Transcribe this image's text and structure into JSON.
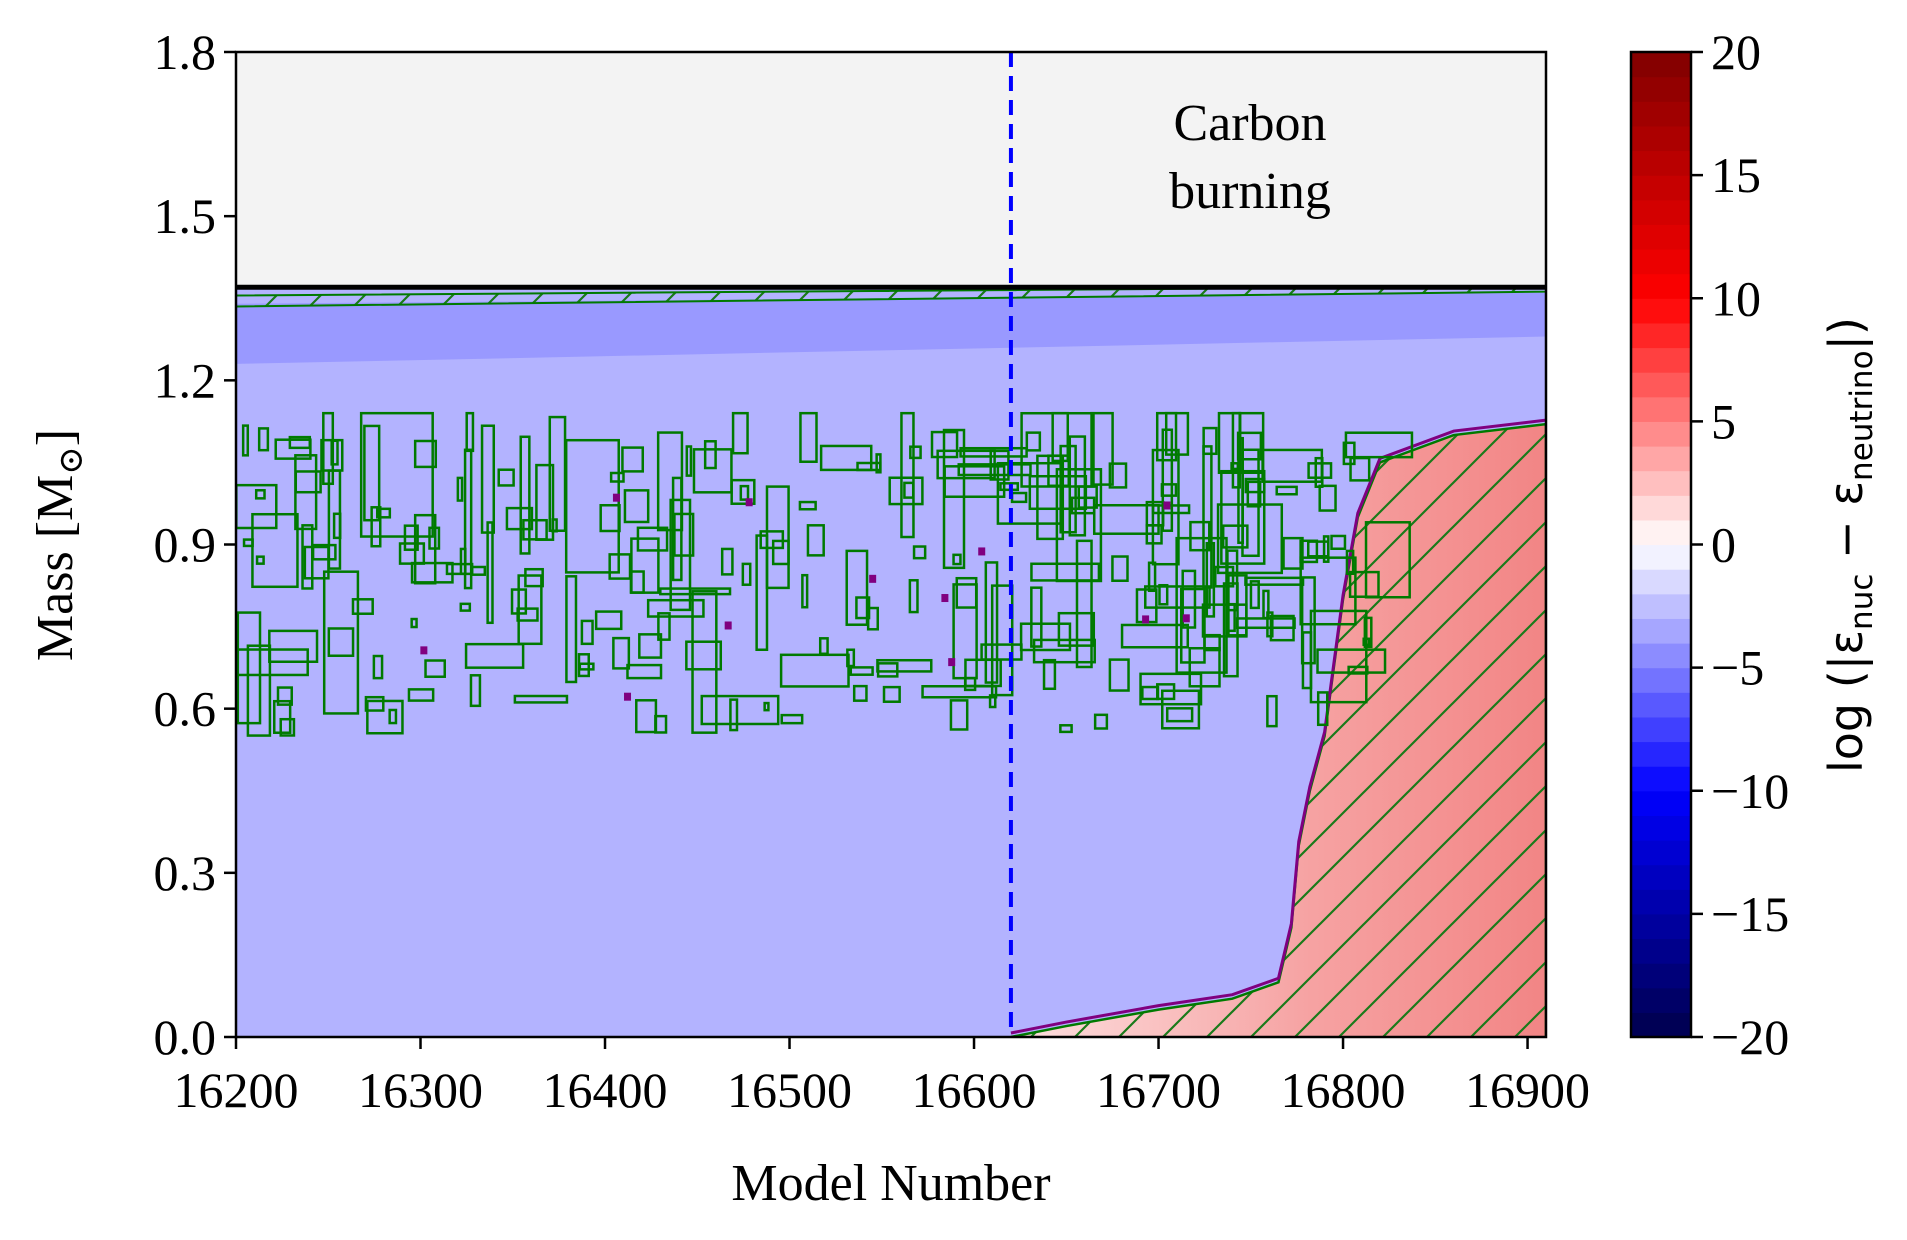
{
  "chart_data": {
    "type": "heatmap",
    "xlabel": "Model Number",
    "ylabel_parts": {
      "main": "Mass [M",
      "sub": "⊙",
      "close": "]"
    },
    "xlim": [
      16200,
      16910
    ],
    "ylim": [
      0.0,
      1.8
    ],
    "xticks": [
      16200,
      16300,
      16400,
      16500,
      16600,
      16700,
      16800,
      16900
    ],
    "yticks": [
      "0.0",
      "0.3",
      "0.6",
      "0.9",
      "1.2",
      "1.5",
      "1.8"
    ],
    "star_mass": 1.37,
    "vertical_line": {
      "x": 16620,
      "style": "dashed",
      "color": "#0000ff"
    },
    "annotation": [
      "Carbon",
      "burning"
    ],
    "regions": {
      "background_value": -3,
      "envelope_band": {
        "y_range": [
          1.23,
          1.35
        ],
        "value": -4
      },
      "burning_core_front": [
        [
          16620,
          0.0
        ],
        [
          16650,
          0.02
        ],
        [
          16700,
          0.05
        ],
        [
          16740,
          0.07
        ],
        [
          16765,
          0.1
        ],
        [
          16772,
          0.2
        ],
        [
          16776,
          0.35
        ],
        [
          16782,
          0.45
        ],
        [
          16790,
          0.55
        ],
        [
          16800,
          0.8
        ],
        [
          16808,
          0.95
        ],
        [
          16820,
          1.05
        ],
        [
          16860,
          1.1
        ],
        [
          16910,
          1.12
        ]
      ],
      "burning_core_value": 5,
      "convective_zone": {
        "x_range": [
          16200,
          16820
        ],
        "y_range": [
          0.55,
          1.1
        ]
      },
      "colors": {
        "mixing_outline": "#007a00",
        "overshoot_outline": "#800080",
        "void": "#f3f3f3"
      }
    },
    "colorbar": {
      "label_parts": {
        "main": "log (|ε",
        "sub1": "nuc",
        "mid": " − ε",
        "sub2": "neutrino",
        "close": "|)"
      },
      "range": [
        -20,
        20
      ],
      "ticks": [
        "20",
        "15",
        "10",
        "5",
        "0",
        "−5",
        "−10",
        "−15",
        "−20"
      ],
      "levels": 40,
      "colormap": "seismic"
    }
  }
}
